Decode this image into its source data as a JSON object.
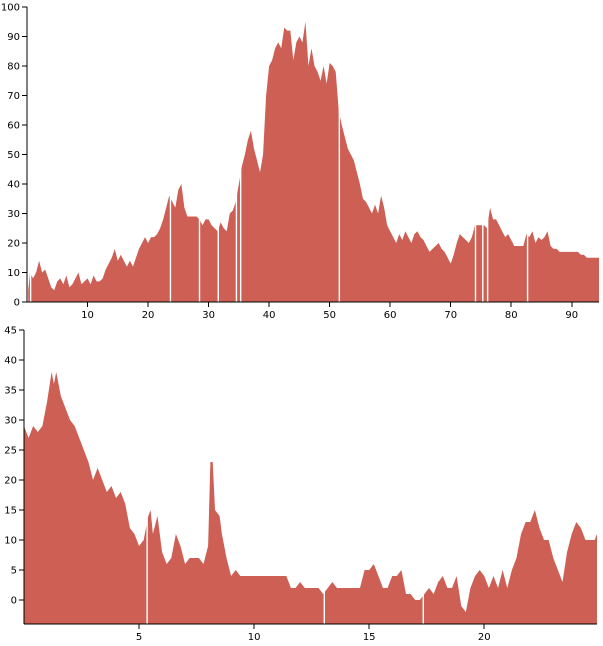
{
  "colors": {
    "area": "#cd5f55",
    "axis": "#000000",
    "gap": "#ffffff"
  },
  "chart_data": [
    {
      "type": "area",
      "title": "",
      "xlabel": "",
      "ylabel": "",
      "xlim": [
        0,
        94.5
      ],
      "ylim": [
        0,
        100
      ],
      "xticks": [
        10,
        20,
        30,
        40,
        50,
        60,
        70,
        80,
        90
      ],
      "yticks": [
        0,
        10,
        20,
        30,
        40,
        50,
        60,
        70,
        80,
        90,
        100
      ],
      "gaps": [
        0.6,
        23.7,
        28.5,
        31.6,
        34.6,
        35.3,
        51.6,
        74.1,
        75.3,
        76.1,
        82.7
      ],
      "points": [
        [
          0.2,
          4
        ],
        [
          0.5,
          10
        ],
        [
          1.0,
          8
        ],
        [
          1.5,
          10
        ],
        [
          2.0,
          14
        ],
        [
          2.5,
          10
        ],
        [
          3.0,
          11
        ],
        [
          3.5,
          8
        ],
        [
          4.0,
          5
        ],
        [
          4.5,
          4
        ],
        [
          5.0,
          7
        ],
        [
          5.5,
          8
        ],
        [
          6.0,
          6
        ],
        [
          6.5,
          9
        ],
        [
          7.0,
          5
        ],
        [
          7.5,
          6
        ],
        [
          8.0,
          8
        ],
        [
          8.5,
          10
        ],
        [
          9.0,
          6
        ],
        [
          9.5,
          7
        ],
        [
          10.0,
          8
        ],
        [
          10.5,
          6
        ],
        [
          11.0,
          9
        ],
        [
          11.5,
          7
        ],
        [
          12.0,
          7
        ],
        [
          12.5,
          8
        ],
        [
          13.0,
          11
        ],
        [
          13.5,
          13
        ],
        [
          14.0,
          15
        ],
        [
          14.5,
          18
        ],
        [
          15.0,
          14
        ],
        [
          15.5,
          16
        ],
        [
          16.0,
          14
        ],
        [
          16.5,
          12
        ],
        [
          17.0,
          14
        ],
        [
          17.5,
          12
        ],
        [
          18.0,
          15
        ],
        [
          18.5,
          18
        ],
        [
          19.0,
          20
        ],
        [
          19.5,
          22
        ],
        [
          20.0,
          20
        ],
        [
          20.5,
          22
        ],
        [
          21.0,
          22
        ],
        [
          21.5,
          23
        ],
        [
          22.0,
          25
        ],
        [
          22.5,
          28
        ],
        [
          23.0,
          32
        ],
        [
          23.5,
          36
        ],
        [
          24.0,
          34
        ],
        [
          24.5,
          32
        ],
        [
          25.0,
          38
        ],
        [
          25.5,
          40
        ],
        [
          26.0,
          32
        ],
        [
          26.5,
          29
        ],
        [
          27.0,
          29
        ],
        [
          27.5,
          29
        ],
        [
          28.0,
          29
        ],
        [
          28.5,
          28
        ],
        [
          29.0,
          26
        ],
        [
          29.5,
          28
        ],
        [
          30.0,
          28
        ],
        [
          30.5,
          26
        ],
        [
          31.0,
          25
        ],
        [
          31.5,
          24
        ],
        [
          32.0,
          27
        ],
        [
          32.5,
          25
        ],
        [
          33.0,
          24
        ],
        [
          33.5,
          30
        ],
        [
          34.0,
          31
        ],
        [
          34.5,
          34
        ],
        [
          35.0,
          40
        ],
        [
          35.5,
          46
        ],
        [
          36.0,
          50
        ],
        [
          36.5,
          55
        ],
        [
          37.0,
          58
        ],
        [
          37.5,
          52
        ],
        [
          38.0,
          48
        ],
        [
          38.5,
          44
        ],
        [
          39.0,
          50
        ],
        [
          39.5,
          70
        ],
        [
          40.0,
          80
        ],
        [
          40.5,
          82
        ],
        [
          41.0,
          86
        ],
        [
          41.5,
          88
        ],
        [
          42.0,
          86
        ],
        [
          42.5,
          93
        ],
        [
          43.0,
          92
        ],
        [
          43.5,
          92
        ],
        [
          44.0,
          82
        ],
        [
          44.5,
          88
        ],
        [
          45.0,
          90
        ],
        [
          45.5,
          88
        ],
        [
          46.0,
          95
        ],
        [
          46.5,
          80
        ],
        [
          47.0,
          86
        ],
        [
          47.5,
          80
        ],
        [
          48.0,
          78
        ],
        [
          48.5,
          75
        ],
        [
          49.0,
          80
        ],
        [
          49.5,
          74
        ],
        [
          50.0,
          81
        ],
        [
          50.5,
          80
        ],
        [
          51.0,
          78
        ],
        [
          51.5,
          65
        ],
        [
          52.0,
          60
        ],
        [
          52.5,
          56
        ],
        [
          53.0,
          52
        ],
        [
          53.5,
          50
        ],
        [
          54.0,
          48
        ],
        [
          54.5,
          44
        ],
        [
          55.0,
          40
        ],
        [
          55.5,
          35
        ],
        [
          56.0,
          34
        ],
        [
          56.5,
          32
        ],
        [
          57.0,
          30
        ],
        [
          57.5,
          33
        ],
        [
          58.0,
          30
        ],
        [
          58.5,
          36
        ],
        [
          59.0,
          32
        ],
        [
          59.5,
          26
        ],
        [
          60.0,
          24
        ],
        [
          60.5,
          22
        ],
        [
          61.0,
          20
        ],
        [
          61.5,
          23
        ],
        [
          62.0,
          21
        ],
        [
          62.5,
          24
        ],
        [
          63.0,
          22
        ],
        [
          63.5,
          20
        ],
        [
          64.0,
          23
        ],
        [
          64.5,
          24
        ],
        [
          65.0,
          22
        ],
        [
          65.5,
          21
        ],
        [
          66.0,
          19
        ],
        [
          66.5,
          17
        ],
        [
          67.0,
          18
        ],
        [
          67.5,
          19
        ],
        [
          68.0,
          20
        ],
        [
          68.5,
          18
        ],
        [
          69.0,
          17
        ],
        [
          69.5,
          15
        ],
        [
          70.0,
          13
        ],
        [
          70.5,
          16
        ],
        [
          71.0,
          20
        ],
        [
          71.5,
          23
        ],
        [
          72.0,
          22
        ],
        [
          72.5,
          21
        ],
        [
          73.0,
          20
        ],
        [
          73.5,
          22
        ],
        [
          74.0,
          26
        ],
        [
          74.5,
          26
        ],
        [
          75.0,
          26
        ],
        [
          75.5,
          26
        ],
        [
          76.0,
          25
        ],
        [
          76.5,
          32
        ],
        [
          77.0,
          28
        ],
        [
          77.5,
          28
        ],
        [
          78.0,
          26
        ],
        [
          78.5,
          24
        ],
        [
          79.0,
          22
        ],
        [
          79.5,
          23
        ],
        [
          80.0,
          21
        ],
        [
          80.5,
          19
        ],
        [
          81.0,
          19
        ],
        [
          81.5,
          19
        ],
        [
          82.0,
          19
        ],
        [
          82.5,
          23
        ],
        [
          83.0,
          22
        ],
        [
          83.5,
          24
        ],
        [
          84.0,
          20
        ],
        [
          84.5,
          22
        ],
        [
          85.0,
          21
        ],
        [
          85.5,
          22
        ],
        [
          86.0,
          24
        ],
        [
          86.5,
          19
        ],
        [
          87.0,
          18
        ],
        [
          87.5,
          18
        ],
        [
          88.0,
          17
        ],
        [
          88.5,
          17
        ],
        [
          89.0,
          17
        ],
        [
          89.5,
          17
        ],
        [
          90.0,
          17
        ],
        [
          90.5,
          17
        ],
        [
          91.0,
          17
        ],
        [
          91.5,
          16
        ],
        [
          92.0,
          16
        ],
        [
          92.5,
          15
        ],
        [
          93.0,
          15
        ],
        [
          93.5,
          15
        ],
        [
          94.0,
          15
        ],
        [
          94.5,
          15
        ]
      ]
    },
    {
      "type": "area",
      "title": "",
      "xlabel": "",
      "ylabel": "",
      "xlim": [
        0,
        24.9
      ],
      "ylim": [
        -4,
        45
      ],
      "xticks": [
        5,
        10,
        15,
        20
      ],
      "yticks": [
        0,
        5,
        10,
        15,
        20,
        25,
        30,
        35,
        40,
        45
      ],
      "gaps": [
        5.35,
        13.05,
        17.35
      ],
      "points": [
        [
          0.0,
          29
        ],
        [
          0.2,
          27
        ],
        [
          0.4,
          29
        ],
        [
          0.6,
          28
        ],
        [
          0.8,
          29
        ],
        [
          1.0,
          33
        ],
        [
          1.2,
          38
        ],
        [
          1.3,
          36
        ],
        [
          1.4,
          38
        ],
        [
          1.6,
          34
        ],
        [
          1.8,
          32
        ],
        [
          2.0,
          30
        ],
        [
          2.2,
          29
        ],
        [
          2.4,
          27
        ],
        [
          2.6,
          25
        ],
        [
          2.8,
          23
        ],
        [
          3.0,
          20
        ],
        [
          3.2,
          22
        ],
        [
          3.4,
          20
        ],
        [
          3.6,
          18
        ],
        [
          3.8,
          19
        ],
        [
          4.0,
          17
        ],
        [
          4.2,
          18
        ],
        [
          4.4,
          16
        ],
        [
          4.6,
          12
        ],
        [
          4.8,
          11
        ],
        [
          5.0,
          9
        ],
        [
          5.2,
          10
        ],
        [
          5.4,
          14
        ],
        [
          5.5,
          15
        ],
        [
          5.6,
          11
        ],
        [
          5.8,
          14
        ],
        [
          6.0,
          8
        ],
        [
          6.2,
          6
        ],
        [
          6.4,
          7
        ],
        [
          6.6,
          11
        ],
        [
          6.8,
          9
        ],
        [
          7.0,
          6
        ],
        [
          7.2,
          7
        ],
        [
          7.4,
          7
        ],
        [
          7.6,
          7
        ],
        [
          7.8,
          6
        ],
        [
          8.0,
          9
        ],
        [
          8.1,
          23
        ],
        [
          8.2,
          23
        ],
        [
          8.3,
          15
        ],
        [
          8.5,
          14
        ],
        [
          8.6,
          11
        ],
        [
          8.8,
          7
        ],
        [
          9.0,
          4
        ],
        [
          9.2,
          5
        ],
        [
          9.4,
          4
        ],
        [
          9.6,
          4
        ],
        [
          9.8,
          4
        ],
        [
          10.0,
          4
        ],
        [
          10.2,
          4
        ],
        [
          10.4,
          4
        ],
        [
          10.6,
          4
        ],
        [
          10.8,
          4
        ],
        [
          11.0,
          4
        ],
        [
          11.2,
          4
        ],
        [
          11.4,
          4
        ],
        [
          11.6,
          2
        ],
        [
          11.8,
          2
        ],
        [
          12.0,
          3
        ],
        [
          12.2,
          2
        ],
        [
          12.4,
          2
        ],
        [
          12.6,
          2
        ],
        [
          12.8,
          2
        ],
        [
          13.0,
          1
        ],
        [
          13.2,
          2
        ],
        [
          13.4,
          3
        ],
        [
          13.6,
          2
        ],
        [
          13.8,
          2
        ],
        [
          14.0,
          2
        ],
        [
          14.2,
          2
        ],
        [
          14.4,
          2
        ],
        [
          14.6,
          2
        ],
        [
          14.8,
          5
        ],
        [
          15.0,
          5
        ],
        [
          15.2,
          6
        ],
        [
          15.4,
          4
        ],
        [
          15.6,
          2
        ],
        [
          15.8,
          2
        ],
        [
          16.0,
          4
        ],
        [
          16.2,
          4
        ],
        [
          16.4,
          5
        ],
        [
          16.6,
          1
        ],
        [
          16.8,
          1
        ],
        [
          17.0,
          0
        ],
        [
          17.2,
          0
        ],
        [
          17.4,
          1
        ],
        [
          17.6,
          2
        ],
        [
          17.8,
          1
        ],
        [
          18.0,
          3
        ],
        [
          18.2,
          4
        ],
        [
          18.4,
          2
        ],
        [
          18.6,
          2
        ],
        [
          18.8,
          4
        ],
        [
          19.0,
          -1
        ],
        [
          19.2,
          -2
        ],
        [
          19.4,
          2
        ],
        [
          19.6,
          4
        ],
        [
          19.8,
          5
        ],
        [
          20.0,
          4
        ],
        [
          20.2,
          2
        ],
        [
          20.4,
          4
        ],
        [
          20.6,
          2
        ],
        [
          20.8,
          5
        ],
        [
          21.0,
          2
        ],
        [
          21.2,
          5
        ],
        [
          21.4,
          7
        ],
        [
          21.6,
          11
        ],
        [
          21.8,
          13
        ],
        [
          22.0,
          13
        ],
        [
          22.2,
          15
        ],
        [
          22.4,
          12
        ],
        [
          22.6,
          10
        ],
        [
          22.8,
          10
        ],
        [
          23.0,
          7
        ],
        [
          23.2,
          5
        ],
        [
          23.4,
          3
        ],
        [
          23.6,
          8
        ],
        [
          23.8,
          11
        ],
        [
          24.0,
          13
        ],
        [
          24.2,
          12
        ],
        [
          24.4,
          10
        ],
        [
          24.6,
          10
        ],
        [
          24.8,
          10
        ],
        [
          24.9,
          11
        ]
      ]
    }
  ]
}
